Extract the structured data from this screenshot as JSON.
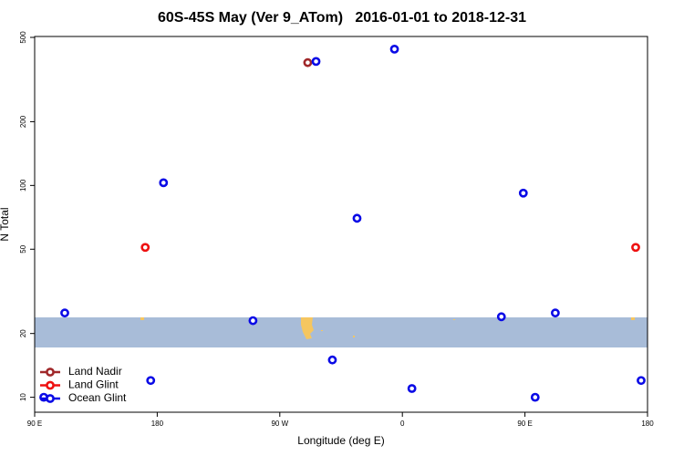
{
  "chart_data": {
    "type": "scatter",
    "title": "60S-45S May (Ver 9_ATom)   2016-01-01 to 2018-12-31",
    "x_label": "Longitude (deg E)",
    "y_label": "N Total",
    "log_y": true,
    "legend": "bottom-left",
    "xlim": [
      -270,
      180
    ],
    "xticks": [
      {
        "value": -270,
        "label": "90 E"
      },
      {
        "value": -180,
        "label": "180"
      },
      {
        "value": -90,
        "label": "90 W"
      },
      0,
      {
        "value": 90,
        "label": "90 E"
      },
      {
        "value": 180,
        "label": "180"
      }
    ],
    "ylim": [
      8.5,
      505
    ],
    "yticks": [
      10,
      20,
      50,
      100,
      200,
      500
    ],
    "series": [
      {
        "name": "Land Nadir",
        "color": "#a0282a",
        "x": [
          -69.5
        ],
        "values": [
          380
        ]
      },
      {
        "name": "Land Glint",
        "color": "#ee1111",
        "x": [
          -188.8,
          171.3
        ],
        "values": [
          51,
          51
        ]
      },
      {
        "name": "Ocean Glint",
        "color": "#0a0ae6",
        "x": [
          -63.4,
          -5.8,
          -175.4,
          88.8,
          -33.3,
          -247.9,
          -109.7,
          72.7,
          112.3,
          -51.4,
          -184.8,
          175.3,
          7,
          97.5,
          -263.3
        ],
        "values": [
          385,
          440,
          103,
          92,
          70,
          25,
          23,
          24,
          25,
          15,
          12,
          12,
          11,
          10,
          10
        ]
      }
    ]
  }
}
